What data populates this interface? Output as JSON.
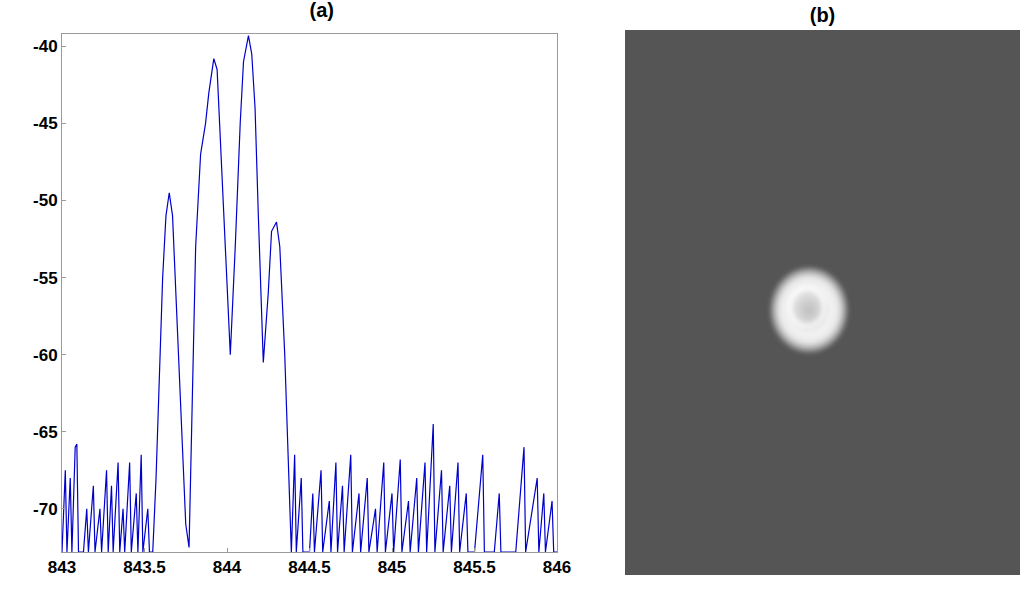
{
  "chart_data": [
    {
      "type": "line",
      "title": "(a)",
      "x": [
        843,
        843.02,
        843.03,
        843.05,
        843.06,
        843.08,
        843.09,
        843.1,
        843.13,
        843.15,
        843.16,
        843.19,
        843.2,
        843.23,
        843.24,
        843.27,
        843.28,
        843.3,
        843.31,
        843.34,
        843.35,
        843.37,
        843.38,
        843.41,
        843.42,
        843.45,
        843.46,
        843.48,
        843.49,
        843.52,
        843.53,
        843.55,
        843.57,
        843.59,
        843.61,
        843.63,
        843.65,
        843.67,
        843.69,
        843.71,
        843.73,
        843.75,
        843.77,
        843.79,
        843.81,
        843.84,
        843.87,
        843.89,
        843.92,
        843.94,
        843.96,
        843.99,
        844.02,
        844.05,
        844.08,
        844.1,
        844.13,
        844.15,
        844.17,
        844.19,
        844.22,
        844.25,
        844.27,
        844.3,
        844.32,
        844.35,
        844.37,
        844.39,
        844.41,
        844.42,
        844.45,
        844.46,
        844.5,
        844.52,
        844.53,
        844.57,
        844.58,
        844.62,
        844.63,
        844.66,
        844.67,
        844.7,
        844.71,
        844.75,
        844.76,
        844.8,
        844.81,
        844.85,
        844.86,
        844.9,
        844.91,
        844.95,
        844.96,
        845,
        845.01,
        845.05,
        845.06,
        845.1,
        845.11,
        845.15,
        845.16,
        845.2,
        845.21,
        845.25,
        845.26,
        845.3,
        845.31,
        845.35,
        845.36,
        845.4,
        845.41,
        845.45,
        845.46,
        845.5,
        845.55,
        845.56,
        845.62,
        845.65,
        845.66,
        845.75,
        845.8,
        845.81,
        845.88,
        845.89,
        845.92,
        845.93,
        845.97,
        845.98,
        846
      ],
      "series": [
        {
          "color": "#0000cc",
          "values": [
            -72.8,
            -67.5,
            -72.8,
            -68,
            -72.8,
            -66,
            -65.8,
            -72.8,
            -72.8,
            -70,
            -72.8,
            -68.5,
            -72.8,
            -70,
            -72.8,
            -67.5,
            -72.8,
            -68.5,
            -72.8,
            -67,
            -72.8,
            -70,
            -72.8,
            -67,
            -72.8,
            -69,
            -72.8,
            -66.5,
            -72.8,
            -70,
            -72.8,
            -72.8,
            -68,
            -62,
            -55,
            -51,
            -49.5,
            -51,
            -56,
            -62,
            -67,
            -71,
            -72.5,
            -62,
            -53,
            -47,
            -45,
            -43,
            -40.8,
            -41.5,
            -46,
            -53,
            -60,
            -53,
            -45,
            -41,
            -39.3,
            -40.5,
            -44,
            -51,
            -60.5,
            -56,
            -52,
            -51.4,
            -53,
            -60,
            -67,
            -72.8,
            -66.5,
            -72.8,
            -68,
            -72.8,
            -72.8,
            -69,
            -72.8,
            -67.5,
            -72.8,
            -69.5,
            -72.8,
            -67,
            -72.8,
            -68.5,
            -72.8,
            -66.5,
            -72.8,
            -69,
            -72.8,
            -68,
            -72.8,
            -70,
            -72.8,
            -67,
            -72.8,
            -69,
            -72.8,
            -66.8,
            -72.8,
            -69.5,
            -72.8,
            -68,
            -72.8,
            -67,
            -72.8,
            -64.5,
            -72.8,
            -67.5,
            -72.8,
            -68.5,
            -72.8,
            -67,
            -72.8,
            -69,
            -72.8,
            -72.8,
            -66.5,
            -72.8,
            -72.8,
            -69,
            -72.8,
            -72.8,
            -66,
            -72.8,
            -68,
            -72.8,
            -69,
            -72.8,
            -69.5,
            -72.8,
            -72.8
          ]
        }
      ],
      "xlim": [
        843,
        846
      ],
      "xticks": [
        843,
        843.5,
        844,
        844.5,
        845,
        845.5,
        846
      ],
      "ylim": [
        -72.8,
        -39.2
      ],
      "yticks": [
        -70,
        -65,
        -60,
        -55,
        -50,
        -45,
        -40
      ],
      "grid": false
    },
    {
      "type": "image",
      "title": "(b)"
    }
  ]
}
